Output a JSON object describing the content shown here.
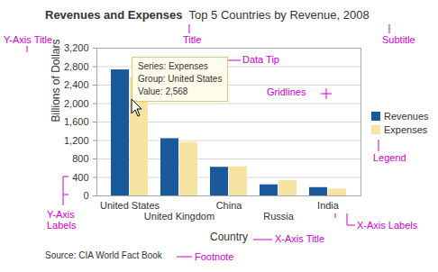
{
  "chart_data": {
    "type": "bar",
    "title": "Revenues and Expenses",
    "subtitle": "Top 5 Countries by Revenue, 2008",
    "x_label": "Country",
    "y_label": "Billions of Dollars",
    "footnote": "Source: CIA World Fact Book",
    "categories": [
      "United States",
      "United Kingdom",
      "China",
      "Russia",
      "India"
    ],
    "series": [
      {
        "name": "Revenues",
        "color": "#1a5a9c",
        "values": [
          2730,
          1240,
          620,
          240,
          180
        ]
      },
      {
        "name": "Expenses",
        "color": "#f7e4a2",
        "values": [
          2568,
          1160,
          630,
          330,
          150
        ]
      }
    ],
    "ylim": [
      0,
      3200
    ],
    "yticks": [
      0,
      400,
      800,
      {
        "value": 1200,
        "label": "1,200"
      },
      {
        "value": 1600,
        "label": "1,600"
      },
      {
        "value": 2000,
        "label": "2,000"
      },
      {
        "value": 2400,
        "label": "2,400"
      },
      {
        "value": 2800,
        "label": "2,800"
      },
      {
        "value": 3200,
        "label": "3,200"
      }
    ],
    "grid": true,
    "legend": "right",
    "tooltip": [
      "Series: Expenses",
      "Group: United States",
      "Value: 2,568"
    ],
    "annotations": [
      "Title",
      "Subtitle",
      "Y-Axis Title",
      "Data Tip",
      "Gridlines",
      "Legend",
      "Y-Axis Labels",
      "X-Axis Labels",
      "X-Axis Title",
      "Footnote"
    ]
  }
}
